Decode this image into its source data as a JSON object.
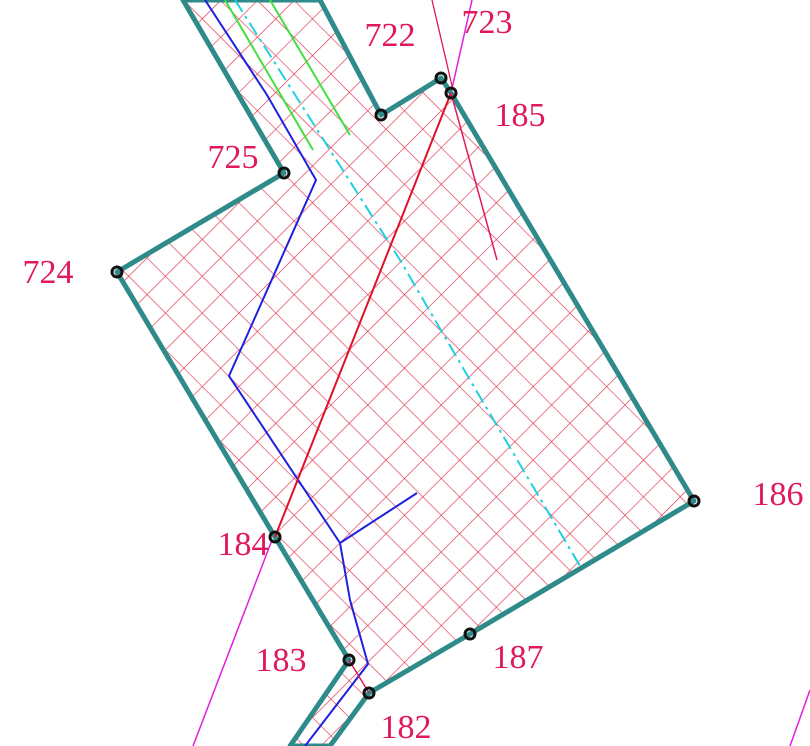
{
  "points": [
    "722",
    "723",
    "185",
    "725",
    "724",
    "184",
    "183",
    "182",
    "187",
    "186"
  ]
}
